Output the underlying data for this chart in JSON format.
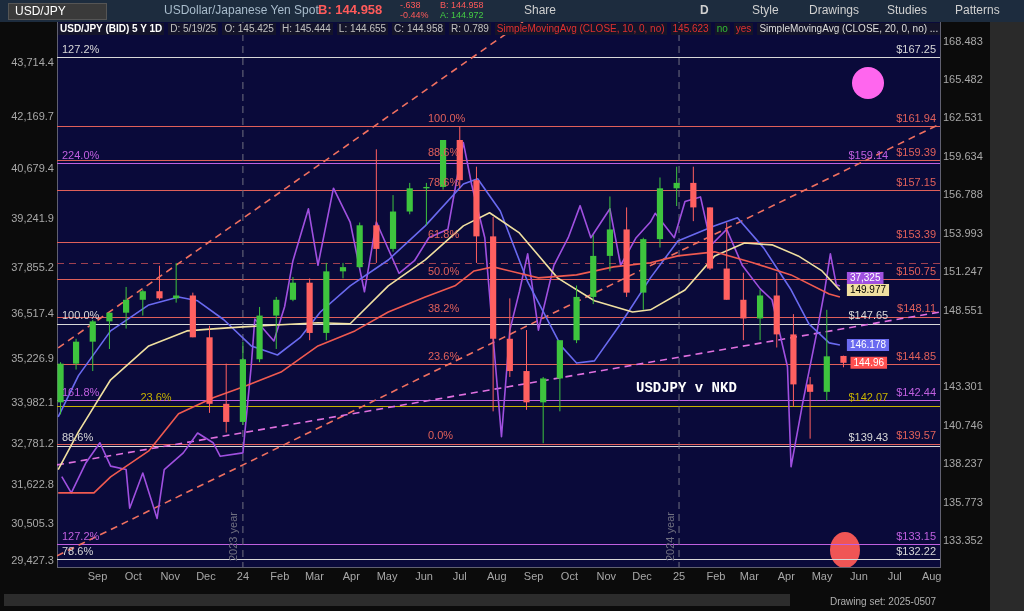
{
  "chart_data": {
    "type": "candlestick",
    "title": "USD/JPY (BID) 5 Y 1D",
    "annotations": [
      "USD/JPY",
      "USDollar/Japanese Yen Spot",
      "B: 144.958",
      "-.638",
      "-0.44%",
      "B: 144.958",
      "A: 144.972",
      "Share",
      "D",
      "Style",
      "Drawings",
      "Studies",
      "Patterns",
      "D: 5/19/25",
      "O: 145.425",
      "H: 145.444",
      "L: 144.655",
      "C: 144.958",
      "R: 0.789",
      "SimpleMovingAvg (CLOSE, 10, 0, no)",
      "145.623",
      "no",
      "yes",
      "SimpleMovingAvg (CLOSE, 20, 0, no) ...",
      "USDJPY v NKD",
      "Drawing set: 2025-0507",
      "127.2%",
      "224.0%",
      "100.0%",
      "161.8%",
      "23.6%",
      "88.6%",
      "127.2%",
      "78.6%",
      "100.0%",
      "88.6%",
      "78.6%",
      "61.8%",
      "50.0%",
      "38.2%",
      "23.6%",
      "0.0%"
    ],
    "xlim": [
      "2023-07-29",
      "2025-08-08"
    ],
    "xticks": [
      {
        "value": "2023-09",
        "label": "Sep"
      },
      {
        "value": "2023-10",
        "label": "Oct"
      },
      {
        "value": "2023-11",
        "label": "Nov"
      },
      {
        "value": "2023-12",
        "label": "Dec"
      },
      {
        "value": "2024-01",
        "label": "24"
      },
      {
        "value": "2024-02",
        "label": "Feb"
      },
      {
        "value": "2024-03",
        "label": "Mar"
      },
      {
        "value": "2024-04",
        "label": "Apr"
      },
      {
        "value": "2024-05",
        "label": "May"
      },
      {
        "value": "2024-06",
        "label": "Jun"
      },
      {
        "value": "2024-07",
        "label": "Jul"
      },
      {
        "value": "2024-08",
        "label": "Aug"
      },
      {
        "value": "2024-09",
        "label": "Sep"
      },
      {
        "value": "2024-10",
        "label": "Oct"
      },
      {
        "value": "2024-11",
        "label": "Nov"
      },
      {
        "value": "2024-12",
        "label": "Dec"
      },
      {
        "value": "2025-01",
        "label": "25"
      },
      {
        "value": "2025-02",
        "label": "Feb"
      },
      {
        "value": "2025-03",
        "label": "Mar"
      },
      {
        "value": "2025-04",
        "label": "Apr"
      },
      {
        "value": "2025-05",
        "label": "May"
      },
      {
        "value": "2025-06",
        "label": "Jun"
      },
      {
        "value": "2025-07",
        "label": "Jul"
      },
      {
        "value": "2025-08",
        "label": "Aug"
      }
    ],
    "ylim": [
      29266,
      44897
    ],
    "yticks": [
      {
        "value": 43714.4,
        "label": "43,714.4"
      },
      {
        "value": 42169.7,
        "label": "42,169.7"
      },
      {
        "value": 40679.4,
        "label": "40,679.4"
      },
      {
        "value": 39241.9,
        "label": "39,241.9"
      },
      {
        "value": 37855.2,
        "label": "37,855.2"
      },
      {
        "value": 36517.4,
        "label": "36,517.4"
      },
      {
        "value": 35226.9,
        "label": "35,226.9"
      },
      {
        "value": 33982.1,
        "label": "33,982.1"
      },
      {
        "value": 32781.2,
        "label": "32,781.2"
      },
      {
        "value": 31622.8,
        "label": "31,622.8"
      },
      {
        "value": 30505.3,
        "label": "30,505.3"
      },
      {
        "value": 29427.3,
        "label": "29,427.3"
      }
    ],
    "y2lim": [
      131.74,
      170.04
    ],
    "y2ticks": [
      168.483,
      165.482,
      162.531,
      159.634,
      156.788,
      153.993,
      151.247,
      148.551,
      143.301,
      140.746,
      138.237,
      135.773,
      133.352
    ],
    "log": "y2",
    "ref_lines": [
      {
        "axis": "y2",
        "value": 167.25,
        "label": "$167.25",
        "color": "#d8d8d8"
      },
      {
        "axis": "y2",
        "value": 161.94,
        "label": "$161.94",
        "color": "#e0605a"
      },
      {
        "axis": "y2",
        "value": 159.39,
        "label": "$159.39",
        "color": "#e0605a"
      },
      {
        "axis": "y2",
        "value": 159.14,
        "label": "$159.14",
        "color": "#c060e0"
      },
      {
        "axis": "y2",
        "value": 157.15,
        "label": "$157.15",
        "color": "#e0605a"
      },
      {
        "axis": "y2",
        "value": 153.39,
        "label": "$153.39",
        "color": "#e0605a"
      },
      {
        "axis": "y2",
        "value": 151.9,
        "label": null,
        "color": "#a04050",
        "line_style": "dashed"
      },
      {
        "axis": "y2",
        "value": 150.75,
        "label": "$150.75",
        "color": "#e0605a"
      },
      {
        "axis": "y2",
        "value": 148.11,
        "label": "$148.11",
        "color": "#e0605a"
      },
      {
        "axis": "y2",
        "value": 147.65,
        "label": "$147.65",
        "color": "#d8d8d8"
      },
      {
        "axis": "y2",
        "value": 144.85,
        "label": "$144.85",
        "color": "#e0605a"
      },
      {
        "axis": "y2",
        "value": 142.44,
        "label": "$142.44",
        "color": "#c060e0"
      },
      {
        "axis": "y2",
        "value": 142.07,
        "label": "$142.07",
        "color": "#c8b400"
      },
      {
        "axis": "y2",
        "value": 139.57,
        "label": "$139.57",
        "color": "#e0605a"
      },
      {
        "axis": "y2",
        "value": 139.43,
        "label": "$139.43",
        "color": "#d8d8d8"
      },
      {
        "axis": "y2",
        "value": 133.15,
        "label": "$133.15",
        "color": "#c060e0"
      },
      {
        "axis": "y2",
        "value": 132.22,
        "label": "$132.22",
        "color": "#d8d8d8"
      },
      {
        "axis": "x",
        "value": "2024-01-01",
        "label": "2023 year",
        "color": "#707080",
        "line_style": "dashed"
      },
      {
        "axis": "x",
        "value": "2025-01-01",
        "label": "2024 year",
        "color": "#707080",
        "line_style": "dashed"
      }
    ],
    "series": [
      {
        "type": "line",
        "axis": "y2",
        "color": "#f05a50",
        "x": [
          "2023-07-30",
          "2023-08-29",
          "2023-09-12",
          "2023-10-14",
          "2023-11-08",
          "2023-12-07",
          "2024-01-01",
          "2024-02-02",
          "2024-03-04",
          "2024-04-04",
          "2024-05-02",
          "2024-06-02",
          "2024-06-27",
          "2024-07-13",
          "2024-07-29",
          "2024-09-05",
          "2024-10-07",
          "2024-11-07",
          "2024-12-08",
          "2024-12-31",
          "2025-01-31",
          "2025-03-04",
          "2025-04-05",
          "2025-05-07",
          "2025-05-16"
        ],
        "values": [
          136.39,
          136.39,
          137.42,
          139.1,
          141.54,
          142.6,
          143.32,
          144.33,
          146.11,
          147.14,
          148.45,
          149.5,
          150.28,
          151.33,
          151.62,
          150.84,
          151.05,
          151.62,
          151.91,
          152.4,
          152.69,
          151.91,
          151.05,
          149.71,
          149.5
        ]
      },
      {
        "type": "line",
        "axis": "y2",
        "color": "#f0e0a0",
        "x": [
          "2023-07-30",
          "2023-08-16",
          "2023-09-12",
          "2023-10-14",
          "2023-11-15",
          "2023-12-07",
          "2024-01-01",
          "2024-02-02",
          "2024-03-04",
          "2024-03-31",
          "2024-05-02",
          "2024-06-02",
          "2024-07-04",
          "2024-07-26",
          "2024-08-20",
          "2024-09-21",
          "2024-10-22",
          "2024-11-23",
          "2024-12-08",
          "2025-01-06",
          "2025-01-31",
          "2025-02-25",
          "2025-03-20",
          "2025-04-11",
          "2025-05-01",
          "2025-05-16"
        ],
        "values": [
          137.88,
          140.34,
          143.81,
          146.11,
          147.14,
          147.28,
          147.42,
          147.56,
          147.7,
          147.63,
          150.28,
          152.11,
          154.56,
          155.51,
          154.05,
          150.84,
          149.23,
          148.45,
          148.6,
          149.99,
          152.4,
          153.32,
          153.19,
          152.4,
          151.33,
          149.977
        ],
        "value_labels": [
          null,
          null,
          null,
          null,
          null,
          null,
          null,
          null,
          null,
          null,
          null,
          null,
          null,
          null,
          null,
          null,
          null,
          null,
          null,
          null,
          null,
          null,
          null,
          null,
          null,
          "149.977"
        ]
      },
      {
        "type": "line",
        "axis": "y2",
        "color": "#6a6af0",
        "x": [
          "2023-07-30",
          "2023-08-16",
          "2023-09-12",
          "2023-10-14",
          "2023-11-08",
          "2023-11-24",
          "2023-12-16",
          "2024-01-08",
          "2024-01-30",
          "2024-02-18",
          "2024-03-06",
          "2024-03-31",
          "2024-05-02",
          "2024-06-02",
          "2024-07-04",
          "2024-07-16",
          "2024-08-04",
          "2024-08-27",
          "2024-09-24",
          "2024-10-07",
          "2024-10-22",
          "2024-11-13",
          "2024-12-08",
          "2024-12-31",
          "2025-01-31",
          "2025-02-19",
          "2025-03-13",
          "2025-04-05",
          "2025-04-20",
          "2025-05-07",
          "2025-05-16"
        ],
        "values": [
          141.34,
          144.09,
          147.14,
          148.94,
          149.5,
          149.23,
          147.91,
          146.11,
          145.49,
          146.67,
          148.45,
          150.28,
          152.11,
          154.56,
          157.62,
          158,
          155.64,
          150.55,
          146.11,
          144.94,
          145.09,
          147.63,
          150.84,
          153.47,
          154.56,
          155.14,
          152.97,
          150,
          147.63,
          146.32,
          146.178
        ],
        "value_labels": [
          null,
          null,
          null,
          null,
          null,
          null,
          null,
          null,
          null,
          null,
          null,
          null,
          null,
          null,
          null,
          null,
          null,
          null,
          null,
          null,
          null,
          null,
          null,
          null,
          null,
          null,
          null,
          null,
          null,
          null,
          "146.178"
        ]
      },
      {
        "type": "line",
        "axis": "y",
        "color": "#a050e0",
        "x": [
          "2023-08-02",
          "2023-08-10",
          "2023-08-22",
          "2023-09-03",
          "2023-09-12",
          "2023-09-25",
          "2023-09-28",
          "2023-10-09",
          "2023-10-21",
          "2023-10-27",
          "2023-11-12",
          "2023-11-24",
          "2023-12-07",
          "2023-12-13",
          "2024-01-01",
          "2024-01-08",
          "2024-01-11",
          "2024-01-27",
          "2024-02-05",
          "2024-02-12",
          "2024-02-25",
          "2024-03-04",
          "2024-03-17",
          "2024-03-31",
          "2024-04-12",
          "2024-04-22",
          "2024-05-11",
          "2024-05-24",
          "2024-06-05",
          "2024-06-21",
          "2024-07-04",
          "2024-07-11",
          "2024-07-22",
          "2024-08-05",
          "2024-08-12",
          "2024-08-20",
          "2024-08-27",
          "2024-09-05",
          "2024-09-18",
          "2024-09-30",
          "2024-10-10",
          "2024-10-19",
          "2024-11-04",
          "2024-11-13",
          "2024-11-26",
          "2024-12-08",
          "2024-12-12",
          "2024-12-28",
          "2025-01-06",
          "2025-01-19",
          "2025-01-28",
          "2025-02-10",
          "2025-02-23",
          "2025-03-10",
          "2025-03-20",
          "2025-04-02",
          "2025-04-05",
          "2025-04-15",
          "2025-04-27",
          "2025-05-03",
          "2025-05-08",
          "2025-05-13",
          "2025-05-16"
        ],
        "values": [
          31860,
          31390,
          32240,
          32830,
          32160,
          32060,
          30950,
          31960,
          30660,
          32060,
          32540,
          33110,
          32830,
          32440,
          32540,
          35030,
          36380,
          35750,
          36730,
          38050,
          39540,
          37920,
          40130,
          39160,
          37160,
          39160,
          37690,
          38050,
          38710,
          38950,
          41440,
          40230,
          38710,
          33000,
          36060,
          37160,
          38250,
          36060,
          37920,
          38710,
          39630,
          38710,
          39540,
          37920,
          38710,
          39160,
          39410,
          38710,
          39750,
          39880,
          38500,
          38950,
          37920,
          37250,
          36930,
          35010,
          32140,
          34010,
          36060,
          37160,
          38250,
          37360,
          37325
        ],
        "value_labels": [
          null,
          null,
          null,
          null,
          null,
          null,
          null,
          null,
          null,
          null,
          null,
          null,
          null,
          null,
          null,
          null,
          null,
          null,
          null,
          null,
          null,
          null,
          null,
          null,
          null,
          null,
          null,
          null,
          null,
          null,
          null,
          null,
          null,
          null,
          null,
          null,
          null,
          null,
          null,
          null,
          null,
          null,
          null,
          null,
          null,
          null,
          null,
          null,
          null,
          null,
          null,
          null,
          null,
          null,
          null,
          null,
          null,
          null,
          null,
          null,
          null,
          null,
          "37,325"
        ]
      },
      {
        "type": "line",
        "axis": "y2",
        "color": "#e070e0",
        "line_style": "dashed",
        "x": [
          "2023-07-29",
          "2025-08-08"
        ],
        "values": [
          138.19,
          148.45
        ]
      },
      {
        "type": "line",
        "axis": "y2",
        "color": "#f07060",
        "line_style": "dashed",
        "x": [
          "2023-07-30",
          "2024-08-23"
        ],
        "values": [
          145.98,
          170.04
        ]
      },
      {
        "type": "line",
        "axis": "y2",
        "color": "#f07060",
        "line_style": "dashed",
        "x": [
          "2023-07-29",
          "2025-08-08"
        ],
        "values": [
          132.43,
          162.11
        ]
      },
      {
        "type": "candlestick",
        "axis": "y2",
        "x": [
          "2023-08-01",
          "2023-08-14",
          "2023-08-28",
          "2023-09-11",
          "2023-09-25",
          "2023-10-09",
          "2023-10-23",
          "2023-11-06",
          "2023-11-20",
          "2023-12-04",
          "2023-12-18",
          "2024-01-01",
          "2024-01-15",
          "2024-01-29",
          "2024-02-12",
          "2024-02-26",
          "2024-03-11",
          "2024-03-25",
          "2024-04-08",
          "2024-04-22",
          "2024-05-06",
          "2024-05-20",
          "2024-06-03",
          "2024-06-17",
          "2024-07-01",
          "2024-07-15",
          "2024-07-29",
          "2024-08-12",
          "2024-08-26",
          "2024-09-09",
          "2024-09-23",
          "2024-10-07",
          "2024-10-21",
          "2024-11-04",
          "2024-11-18",
          "2024-12-02",
          "2024-12-16",
          "2024-12-30",
          "2025-01-13",
          "2025-01-27",
          "2025-02-10",
          "2025-02-24",
          "2025-03-10",
          "2025-03-24",
          "2025-04-07",
          "2025-04-21",
          "2025-05-05",
          "2025-05-19"
        ],
        "ohlc": [
          [
            142.3,
            145.0,
            141.5,
            144.9
          ],
          [
            144.9,
            146.6,
            144.5,
            146.4
          ],
          [
            146.4,
            147.9,
            144.4,
            147.8
          ],
          [
            147.8,
            148.4,
            145.9,
            148.4
          ],
          [
            148.4,
            150.2,
            147.3,
            149.3
          ],
          [
            149.3,
            150.0,
            148.2,
            149.9
          ],
          [
            149.9,
            151.7,
            149.3,
            149.4
          ],
          [
            149.4,
            151.9,
            149.1,
            149.6
          ],
          [
            149.6,
            149.8,
            146.7,
            146.7
          ],
          [
            146.7,
            147.5,
            141.6,
            142.2
          ],
          [
            142.2,
            144.9,
            140.3,
            141.0
          ],
          [
            141.0,
            146.4,
            140.8,
            145.2
          ],
          [
            145.2,
            148.8,
            145.0,
            148.2
          ],
          [
            148.2,
            149.5,
            145.9,
            149.3
          ],
          [
            149.3,
            150.9,
            149.2,
            150.5
          ],
          [
            150.5,
            150.8,
            146.5,
            147.0
          ],
          [
            147.0,
            151.9,
            146.5,
            151.3
          ],
          [
            151.3,
            151.9,
            150.8,
            151.6
          ],
          [
            151.6,
            154.8,
            151.5,
            154.6
          ],
          [
            154.6,
            160.2,
            151.9,
            152.9
          ],
          [
            152.9,
            156.8,
            152.7,
            155.6
          ],
          [
            155.6,
            157.7,
            155.4,
            157.3
          ],
          [
            157.3,
            157.7,
            154.6,
            157.4
          ],
          [
            157.4,
            160.9,
            157.2,
            160.9
          ],
          [
            160.9,
            161.95,
            157.3,
            157.9
          ],
          [
            157.9,
            158.9,
            151.9,
            153.8
          ],
          [
            153.8,
            155.2,
            141.7,
            146.6
          ],
          [
            146.6,
            149.4,
            144.0,
            144.4
          ],
          [
            144.4,
            147.2,
            141.8,
            142.3
          ],
          [
            142.3,
            144.0,
            139.6,
            143.9
          ],
          [
            143.9,
            146.5,
            141.7,
            146.5
          ],
          [
            146.5,
            150.3,
            146.3,
            149.5
          ],
          [
            149.5,
            153.9,
            149.0,
            152.4
          ],
          [
            152.4,
            156.7,
            151.3,
            154.3
          ],
          [
            154.3,
            155.9,
            149.5,
            149.8
          ],
          [
            149.8,
            153.7,
            148.6,
            153.6
          ],
          [
            153.6,
            158.1,
            153.0,
            157.3
          ],
          [
            157.3,
            158.9,
            156.0,
            157.7
          ],
          [
            157.7,
            158.9,
            154.9,
            155.9
          ],
          [
            155.9,
            155.9,
            151.4,
            151.5
          ],
          [
            151.5,
            154.8,
            149.3,
            149.3
          ],
          [
            149.3,
            151.2,
            146.5,
            148.0
          ],
          [
            148.0,
            150.0,
            146.5,
            149.6
          ],
          [
            149.6,
            151.2,
            146.0,
            146.9
          ],
          [
            146.9,
            148.3,
            142.0,
            143.5
          ],
          [
            143.5,
            144.0,
            139.9,
            143.0
          ],
          [
            143.0,
            148.6,
            142.4,
            145.4
          ],
          [
            145.425,
            145.444,
            144.655,
            144.958
          ]
        ],
        "value_labels": [
          null,
          null,
          null,
          null,
          null,
          null,
          null,
          null,
          null,
          null,
          null,
          null,
          null,
          null,
          null,
          null,
          null,
          null,
          null,
          null,
          null,
          null,
          null,
          null,
          null,
          null,
          null,
          null,
          null,
          null,
          null,
          null,
          null,
          null,
          null,
          null,
          null,
          null,
          null,
          null,
          null,
          null,
          null,
          null,
          null,
          null,
          null,
          "144.96"
        ]
      }
    ]
  }
}
